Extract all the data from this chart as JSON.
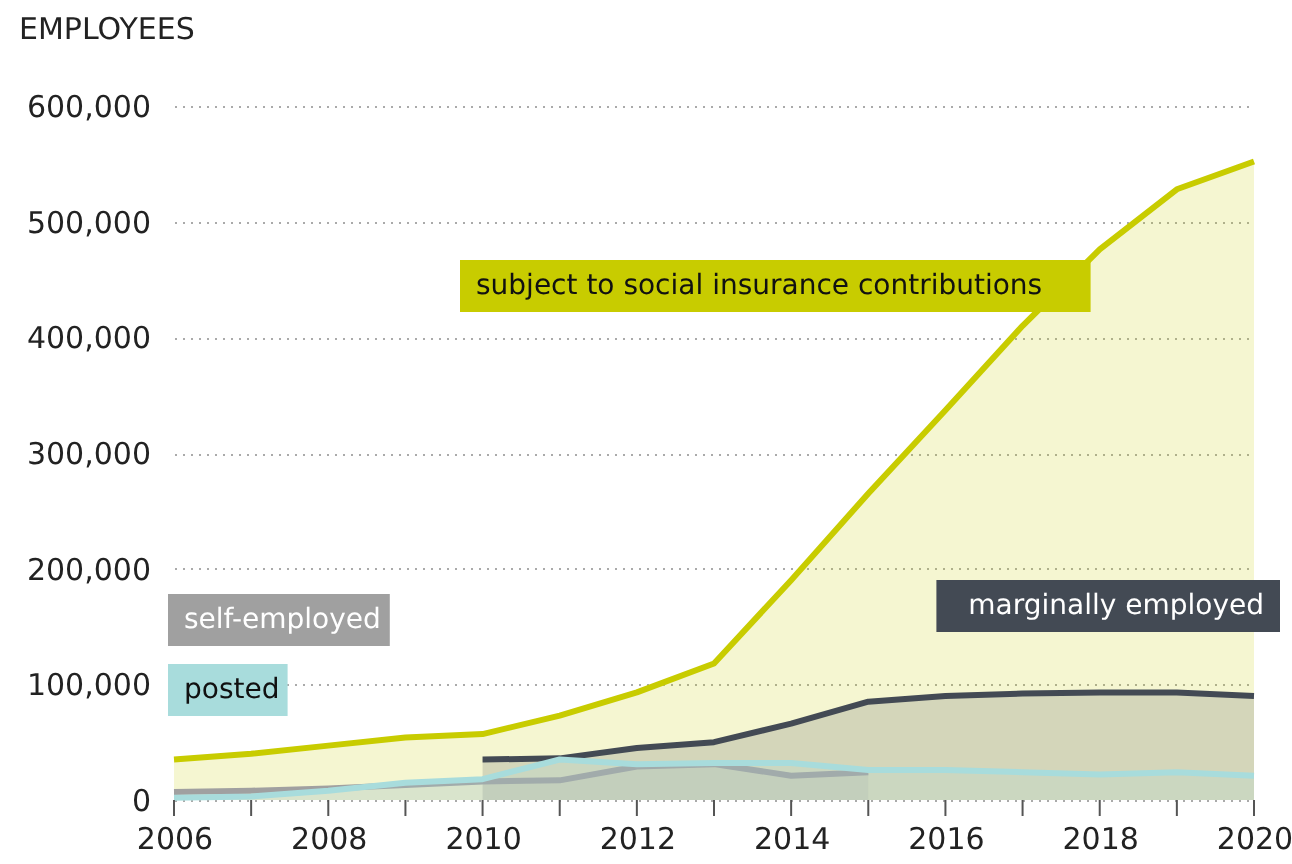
{
  "chart_data": {
    "type": "area",
    "ylabel": "EMPLOYEES",
    "x": [
      2006,
      2007,
      2008,
      2009,
      2010,
      2011,
      2012,
      2013,
      2014,
      2015,
      2016,
      2017,
      2018,
      2019,
      2020
    ],
    "series": [
      {
        "name": "subject to social insurance contributions",
        "color": "#c8cc00",
        "values": [
          35000,
          40000,
          47000,
          54000,
          57000,
          73000,
          93000,
          118000,
          190000,
          265000,
          337000,
          410000,
          476000,
          528000,
          552000
        ]
      },
      {
        "name": "marginally employed",
        "color": "#434a54",
        "values": [
          null,
          null,
          null,
          null,
          35000,
          36000,
          45000,
          50000,
          66000,
          85000,
          90000,
          92000,
          93000,
          93000,
          90000
        ]
      },
      {
        "name": "self-employed",
        "color": "#a0a0a0",
        "values": [
          7000,
          8000,
          10000,
          13000,
          16000,
          17000,
          29000,
          31000,
          21000,
          24000,
          null,
          null,
          null,
          null,
          null
        ]
      },
      {
        "name": "posted",
        "color": "#a8dcdc",
        "values": [
          2000,
          3000,
          8000,
          15000,
          18000,
          35000,
          31000,
          32000,
          32000,
          26000,
          26000,
          24000,
          22000,
          24000,
          21000
        ]
      }
    ],
    "xlim": [
      2006,
      2020
    ],
    "xticks": [
      2006,
      {
        "value": 2007,
        "label": null
      },
      2008,
      {
        "value": 2009,
        "label": null
      },
      2010,
      {
        "value": 2011,
        "label": null
      },
      2012,
      {
        "value": 2013,
        "label": null
      },
      2014,
      {
        "value": 2015,
        "label": null
      },
      2016,
      {
        "value": 2017,
        "label": null
      },
      2018,
      {
        "value": 2019,
        "label": null
      },
      2020
    ],
    "ylim": [
      0,
      600000
    ],
    "yticks": [
      0,
      {
        "value": 100000,
        "label": "100,000"
      },
      {
        "value": 200000,
        "label": "200,000"
      },
      {
        "value": 300000,
        "label": "300,000"
      },
      {
        "value": 400000,
        "label": "400,000"
      },
      {
        "value": 500000,
        "label": "500,000"
      },
      {
        "value": 600000,
        "label": "600,000"
      }
    ],
    "grid": "y"
  }
}
